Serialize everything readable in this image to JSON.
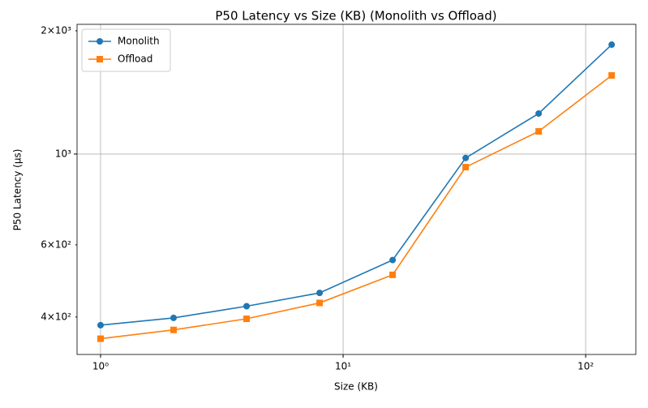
{
  "chart_data": {
    "type": "line",
    "title": "P50 Latency vs Size (KB) (Monolith vs Offload)",
    "xlabel": "Size (KB)",
    "ylabel": "P50 Latency (μs)",
    "x": [
      1,
      2,
      4,
      8,
      16,
      32,
      64,
      128
    ],
    "series": [
      {
        "name": "Monolith",
        "color": "#1f77b4",
        "marker": "circle",
        "values": [
          382,
          398,
          425,
          458,
          551,
          978,
          1256,
          1850
        ]
      },
      {
        "name": "Offload",
        "color": "#ff7f0e",
        "marker": "square",
        "values": [
          354,
          372,
          396,
          433,
          507,
          929,
          1136,
          1556
        ]
      }
    ],
    "xscale": "log",
    "yscale": "log",
    "xlim": [
      0.8,
      161
    ],
    "ylim": [
      324,
      2074
    ],
    "xticks": [
      {
        "value": 1,
        "label": "10⁰"
      },
      {
        "value": 10,
        "label": "10¹"
      },
      {
        "value": 100,
        "label": "10²"
      }
    ],
    "yticks": [
      {
        "value": 1000,
        "label": "10³"
      }
    ],
    "yminorticks": [
      {
        "value": 400,
        "label": "4×10²"
      },
      {
        "value": 600,
        "label": "6×10²"
      },
      {
        "value": 2000,
        "label": "2×10³"
      }
    ],
    "grid": true,
    "legend": "upper-left"
  }
}
